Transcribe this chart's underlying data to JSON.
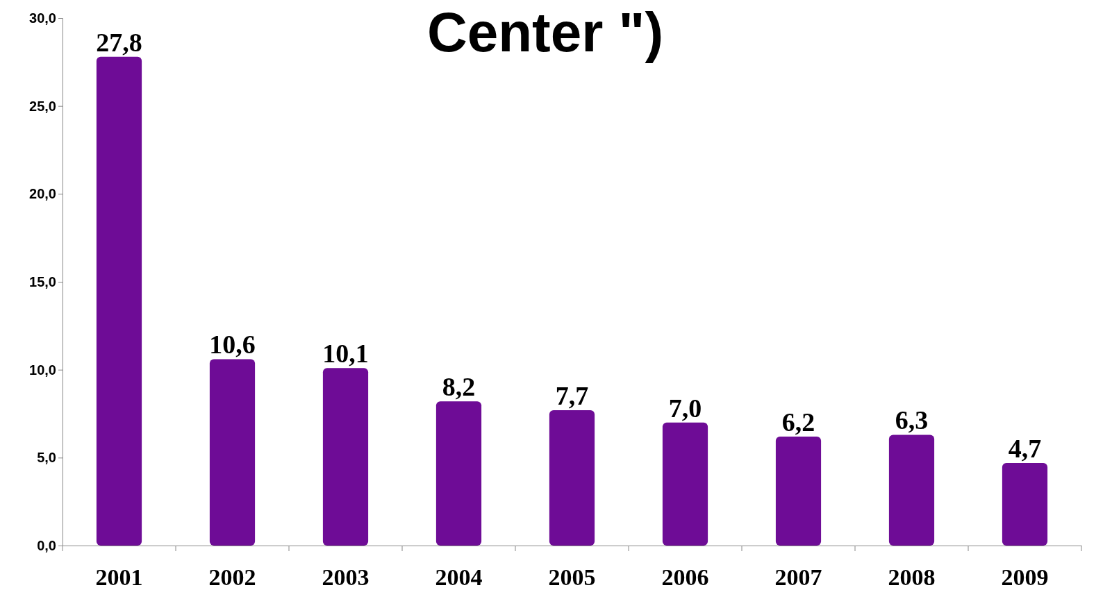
{
  "chart_data": {
    "type": "bar",
    "title": "Center \")",
    "categories": [
      "2001",
      "2002",
      "2003",
      "2004",
      "2005",
      "2006",
      "2007",
      "2008",
      "2009"
    ],
    "values": [
      27.8,
      10.6,
      10.1,
      8.2,
      7.7,
      7.0,
      6.2,
      6.3,
      4.7
    ],
    "value_labels": [
      "27,8",
      "10,6",
      "10,1",
      "8,2",
      "7,7",
      "7,0",
      "6,2",
      "6,3",
      "4,7"
    ],
    "color": "#6e0c96",
    "ylim": [
      0,
      30
    ],
    "yticks": [
      {
        "value": 0,
        "label": "0,0"
      },
      {
        "value": 5,
        "label": "5,0"
      },
      {
        "value": 10,
        "label": "10,0"
      },
      {
        "value": 15,
        "label": "15,0"
      },
      {
        "value": 20,
        "label": "20,0"
      },
      {
        "value": 25,
        "label": "25,0"
      },
      {
        "value": 30,
        "label": "30,0"
      }
    ],
    "grid": false
  }
}
